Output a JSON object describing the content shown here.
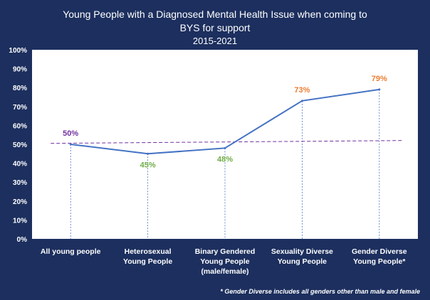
{
  "chart_data": {
    "type": "line",
    "title_lines": [
      "Young People with a Diagnosed Mental Health Issue when coming to",
      "BYS for support",
      "2015-2021"
    ],
    "categories": [
      [
        "All young people"
      ],
      [
        "Heterosexual",
        "Young People"
      ],
      [
        "Binary Gendered",
        "Young People",
        "(male/female)"
      ],
      [
        "Sexuality Diverse",
        "Young People"
      ],
      [
        "Gender Diverse",
        "Young People*"
      ]
    ],
    "series": [
      {
        "values": [
          50,
          45,
          48,
          73,
          79
        ],
        "data_labels": [
          "50%",
          "45%",
          "48%",
          "73%",
          "79%"
        ],
        "label_colors": [
          "#7030a0",
          "#70ad47",
          "#70ad47",
          "#ed7d31",
          "#ed7d31"
        ]
      }
    ],
    "trendline": {
      "start": 50.5,
      "end": 52,
      "color": "#7030a0",
      "style": "dashed"
    },
    "y_ticks": [
      "0%",
      "10%",
      "20%",
      "30%",
      "40%",
      "50%",
      "60%",
      "70%",
      "80%",
      "90%",
      "100%"
    ],
    "ylim": [
      0,
      100
    ],
    "grid": false,
    "legend": "none",
    "colors": {
      "line": "#4472c4",
      "drop_lines": "#4472c4",
      "plot_bg": "#ffffff",
      "frame_bg": "#1c2f5e"
    },
    "footnote": "* Gender Diverse includes all genders other than male and female"
  }
}
